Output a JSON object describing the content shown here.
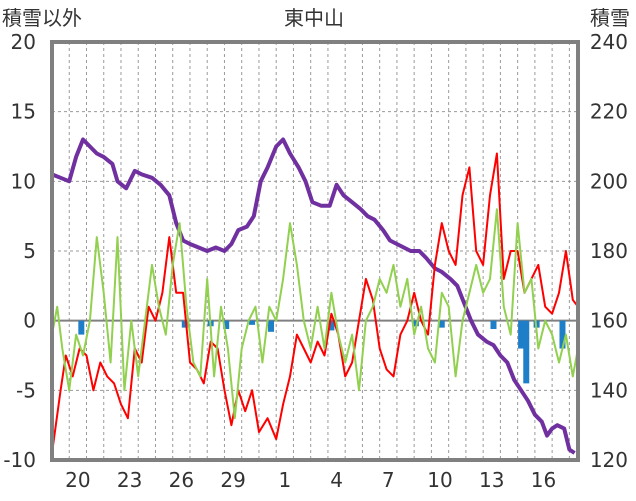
{
  "chart_data": {
    "type": "line",
    "title": "東中山",
    "left_axis_label": "積雪以外",
    "right_axis_label": "積雪",
    "ylim_left": [
      -10,
      20
    ],
    "yticks_left": [
      20,
      15,
      10,
      5,
      0,
      -5,
      -10
    ],
    "ylim_right": [
      120,
      240
    ],
    "yticks_right": [
      240,
      220,
      200,
      180,
      160,
      140,
      120
    ],
    "x_tick_labels": [
      "20",
      "23",
      "26",
      "29",
      "1",
      "4",
      "7",
      "10",
      "13",
      "16"
    ],
    "grid": true,
    "x_range": [
      0,
      30.5
    ],
    "x_tick_positions": [
      1.5,
      4.5,
      7.5,
      10.5,
      13.5,
      16.5,
      19.5,
      22.5,
      25.5,
      28.5
    ],
    "series": [
      {
        "axis": "right",
        "color": "#7030a0",
        "points": [
          [
            0,
            202
          ],
          [
            0.5,
            201
          ],
          [
            1,
            200
          ],
          [
            1.4,
            207
          ],
          [
            1.8,
            212
          ],
          [
            2.2,
            210
          ],
          [
            2.6,
            208
          ],
          [
            3,
            207
          ],
          [
            3.5,
            205
          ],
          [
            3.8,
            200
          ],
          [
            4.3,
            198
          ],
          [
            4.8,
            203
          ],
          [
            5.2,
            202
          ],
          [
            5.8,
            201
          ],
          [
            6.3,
            199
          ],
          [
            6.8,
            196
          ],
          [
            7.2,
            188
          ],
          [
            7.6,
            183
          ],
          [
            8,
            182
          ],
          [
            8.5,
            181
          ],
          [
            9,
            180
          ],
          [
            9.5,
            181
          ],
          [
            10,
            180
          ],
          [
            10.4,
            182
          ],
          [
            10.8,
            186
          ],
          [
            11.3,
            187
          ],
          [
            11.7,
            190
          ],
          [
            12.1,
            200
          ],
          [
            12.5,
            204
          ],
          [
            13,
            210
          ],
          [
            13.4,
            212
          ],
          [
            13.8,
            208
          ],
          [
            14.3,
            204
          ],
          [
            14.7,
            200
          ],
          [
            15.1,
            194
          ],
          [
            15.6,
            193
          ],
          [
            16.1,
            193
          ],
          [
            16.5,
            199
          ],
          [
            16.9,
            196
          ],
          [
            17.4,
            194
          ],
          [
            17.9,
            192
          ],
          [
            18.3,
            190
          ],
          [
            18.7,
            189
          ],
          [
            19.2,
            186
          ],
          [
            19.6,
            183
          ],
          [
            20,
            182
          ],
          [
            20.4,
            181
          ],
          [
            20.8,
            180
          ],
          [
            21.3,
            180
          ],
          [
            21.7,
            178
          ],
          [
            22.2,
            175
          ],
          [
            22.6,
            174
          ],
          [
            23.1,
            172
          ],
          [
            23.5,
            170
          ],
          [
            23.9,
            165
          ],
          [
            24.3,
            160
          ],
          [
            24.7,
            156
          ],
          [
            25.2,
            154
          ],
          [
            25.6,
            153
          ],
          [
            26,
            150
          ],
          [
            26.4,
            148
          ],
          [
            26.8,
            143
          ],
          [
            27.2,
            140
          ],
          [
            27.6,
            137
          ],
          [
            28,
            133
          ],
          [
            28.4,
            131
          ],
          [
            28.7,
            127
          ],
          [
            29,
            129
          ],
          [
            29.3,
            130
          ],
          [
            29.7,
            129
          ],
          [
            30,
            123
          ],
          [
            30.3,
            122
          ]
        ]
      },
      {
        "axis": "left",
        "color": "#ff0000",
        "points": [
          [
            0,
            -9.5
          ],
          [
            0.5,
            -5
          ],
          [
            0.8,
            -2.5
          ],
          [
            1.2,
            -4
          ],
          [
            1.6,
            -2
          ],
          [
            2,
            -2.5
          ],
          [
            2.4,
            -5
          ],
          [
            2.8,
            -3
          ],
          [
            3.2,
            -4
          ],
          [
            3.6,
            -4.5
          ],
          [
            4,
            -6
          ],
          [
            4.4,
            -7
          ],
          [
            4.8,
            -2
          ],
          [
            5.2,
            -3
          ],
          [
            5.6,
            1
          ],
          [
            6,
            0
          ],
          [
            6.4,
            2
          ],
          [
            6.8,
            6
          ],
          [
            7.2,
            2
          ],
          [
            7.6,
            2
          ],
          [
            8,
            -3
          ],
          [
            8.4,
            -3.5
          ],
          [
            8.8,
            -4.5
          ],
          [
            9.2,
            -1.5
          ],
          [
            9.6,
            -2
          ],
          [
            10,
            -5
          ],
          [
            10.4,
            -7.5
          ],
          [
            10.8,
            -5
          ],
          [
            11.2,
            -6.5
          ],
          [
            11.6,
            -5
          ],
          [
            12,
            -8
          ],
          [
            12.5,
            -7
          ],
          [
            13,
            -8.5
          ],
          [
            13.4,
            -6
          ],
          [
            13.8,
            -4
          ],
          [
            14.2,
            -1
          ],
          [
            14.6,
            -2
          ],
          [
            15,
            -3
          ],
          [
            15.4,
            -1.5
          ],
          [
            15.8,
            -2.5
          ],
          [
            16.2,
            0.5
          ],
          [
            16.6,
            -1
          ],
          [
            17,
            -4
          ],
          [
            17.4,
            -3
          ],
          [
            17.8,
            0
          ],
          [
            18.2,
            3
          ],
          [
            18.6,
            1.5
          ],
          [
            19,
            -2
          ],
          [
            19.4,
            -3.5
          ],
          [
            19.8,
            -4
          ],
          [
            20.2,
            -1
          ],
          [
            20.6,
            0
          ],
          [
            21,
            2
          ],
          [
            21.4,
            0
          ],
          [
            21.8,
            -1
          ],
          [
            22.2,
            4
          ],
          [
            22.6,
            7
          ],
          [
            23,
            5
          ],
          [
            23.4,
            4
          ],
          [
            23.8,
            9
          ],
          [
            24.2,
            11
          ],
          [
            24.6,
            5
          ],
          [
            25,
            4
          ],
          [
            25.4,
            9
          ],
          [
            25.8,
            12
          ],
          [
            26.2,
            3
          ],
          [
            26.6,
            5
          ],
          [
            27,
            5
          ],
          [
            27.4,
            2
          ],
          [
            27.8,
            3
          ],
          [
            28.2,
            4
          ],
          [
            28.6,
            1
          ],
          [
            29,
            0.5
          ],
          [
            29.4,
            2
          ],
          [
            29.8,
            5
          ],
          [
            30.2,
            1.5
          ],
          [
            30.5,
            1
          ]
        ]
      },
      {
        "axis": "left",
        "color": "#92d050",
        "points": [
          [
            0,
            -1
          ],
          [
            0.3,
            1
          ],
          [
            0.6,
            -2
          ],
          [
            1,
            -5
          ],
          [
            1.4,
            -1
          ],
          [
            1.8,
            -2.5
          ],
          [
            2.2,
            0
          ],
          [
            2.6,
            6
          ],
          [
            3,
            2
          ],
          [
            3.4,
            -3
          ],
          [
            3.8,
            6
          ],
          [
            4.2,
            -5
          ],
          [
            4.6,
            0
          ],
          [
            5,
            -4
          ],
          [
            5.4,
            0
          ],
          [
            5.8,
            4
          ],
          [
            6.2,
            1
          ],
          [
            6.6,
            -1
          ],
          [
            7,
            4
          ],
          [
            7.4,
            7
          ],
          [
            7.8,
            1
          ],
          [
            8.2,
            -3
          ],
          [
            8.6,
            -4
          ],
          [
            9,
            3
          ],
          [
            9.4,
            -4
          ],
          [
            9.8,
            1
          ],
          [
            10.2,
            -2
          ],
          [
            10.6,
            -7
          ],
          [
            11,
            -2
          ],
          [
            11.4,
            0
          ],
          [
            11.8,
            1
          ],
          [
            12.2,
            -3
          ],
          [
            12.6,
            1
          ],
          [
            13,
            0
          ],
          [
            13.4,
            3
          ],
          [
            13.8,
            7
          ],
          [
            14.2,
            4
          ],
          [
            14.6,
            0
          ],
          [
            15,
            -2
          ],
          [
            15.4,
            1
          ],
          [
            15.8,
            -2
          ],
          [
            16.2,
            2
          ],
          [
            16.6,
            -1
          ],
          [
            17,
            -3
          ],
          [
            17.4,
            -1
          ],
          [
            17.8,
            -5
          ],
          [
            18.2,
            0
          ],
          [
            18.6,
            1
          ],
          [
            19,
            3
          ],
          [
            19.4,
            2
          ],
          [
            19.8,
            4
          ],
          [
            20.2,
            1
          ],
          [
            20.6,
            3
          ],
          [
            21,
            -1
          ],
          [
            21.4,
            1
          ],
          [
            21.8,
            -2
          ],
          [
            22.2,
            -3
          ],
          [
            22.6,
            2
          ],
          [
            23,
            1
          ],
          [
            23.4,
            -4
          ],
          [
            23.8,
            0
          ],
          [
            24.2,
            2
          ],
          [
            24.6,
            4
          ],
          [
            25,
            2
          ],
          [
            25.4,
            3
          ],
          [
            25.8,
            8
          ],
          [
            26.2,
            1
          ],
          [
            26.6,
            -1
          ],
          [
            27,
            7
          ],
          [
            27.4,
            2
          ],
          [
            27.8,
            3
          ],
          [
            28.2,
            -2
          ],
          [
            28.6,
            0
          ],
          [
            29,
            -1
          ],
          [
            29.4,
            -3
          ],
          [
            29.8,
            -1
          ],
          [
            30.2,
            -4
          ],
          [
            30.5,
            -2
          ]
        ]
      },
      {
        "axis": "left",
        "type": "bar",
        "color": "#1f7ec8",
        "points": [
          [
            1.7,
            -1
          ],
          [
            7.7,
            -0.5
          ],
          [
            9.2,
            -0.4
          ],
          [
            10.1,
            -0.6
          ],
          [
            11.6,
            -0.3
          ],
          [
            12.7,
            -0.8
          ],
          [
            16.2,
            -0.7
          ],
          [
            21.1,
            -0.4
          ],
          [
            22.6,
            -0.5
          ],
          [
            25.6,
            -0.6
          ],
          [
            27.2,
            -2
          ],
          [
            27.5,
            -4.5
          ],
          [
            28.1,
            -0.5
          ],
          [
            29.6,
            -2
          ]
        ]
      }
    ]
  }
}
